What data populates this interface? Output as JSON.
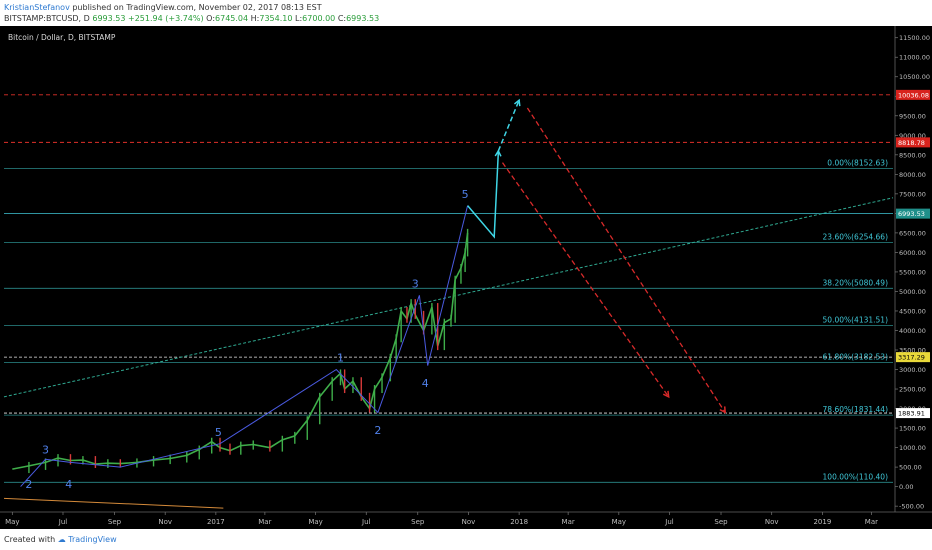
{
  "header": {
    "author": "KristianStefanov",
    "published": " published on TradingView.com, November 02, 2017 08:13 EST",
    "symbol": "BITSTAMP:BTCUSD, D",
    "last": "6993.53",
    "change": "+251.94 (+3.74%)",
    "o_label": "O:",
    "o_value": "6745.04",
    "h_label": "H:",
    "h_value": "7354.10",
    "l_label": "L:",
    "l_value": "6700.00",
    "c_label": "C:",
    "c_value": "6993.53"
  },
  "footer": {
    "created_with": "Created with",
    "brand": "TradingView"
  },
  "chart_data": {
    "type": "line",
    "title": "Bitcoin / Dollar, D, BITSTAMP",
    "y_ticks": [
      -500,
      0,
      500,
      1000,
      1500,
      2000,
      2500,
      3000,
      3500,
      4000,
      4500,
      5000,
      5500,
      6000,
      6500,
      7000,
      7500,
      8000,
      8500,
      9000,
      9500,
      10000,
      10500,
      11000,
      11500
    ],
    "y_tick_labels": [
      "-500.00",
      "0.00",
      "500.00",
      "1000.00",
      "1500.00",
      "2000.00",
      "2500.00",
      "3000.00",
      "3500.00",
      "4000.00",
      "4500.00",
      "5000.00",
      "5500.00",
      "6000.00",
      "6500.00",
      "7000.00",
      "7500.00",
      "8000.00",
      "8500.00",
      "9000.00",
      "9500.00",
      "10000.00",
      "10500.00",
      "11000.00",
      "11500.00"
    ],
    "ylim": [
      -650,
      11800
    ],
    "x_ticks": [
      {
        "label": "May",
        "t": 0
      },
      {
        "label": "Jul",
        "t": 61
      },
      {
        "label": "Sep",
        "t": 123
      },
      {
        "label": "Nov",
        "t": 184
      },
      {
        "label": "2017",
        "t": 245
      },
      {
        "label": "Mar",
        "t": 304
      },
      {
        "label": "May",
        "t": 365
      },
      {
        "label": "Jul",
        "t": 426
      },
      {
        "label": "Sep",
        "t": 488
      },
      {
        "label": "Nov",
        "t": 549
      },
      {
        "label": "2018",
        "t": 610
      },
      {
        "label": "Mar",
        "t": 669
      },
      {
        "label": "May",
        "t": 730
      },
      {
        "label": "Jul",
        "t": 791
      },
      {
        "label": "Sep",
        "t": 853
      },
      {
        "label": "Nov",
        "t": 914
      },
      {
        "label": "2019",
        "t": 975
      },
      {
        "label": "Mar",
        "t": 1034
      }
    ],
    "xlim": [
      -10,
      1060
    ],
    "price_series": {
      "t": [
        0,
        20,
        40,
        55,
        70,
        85,
        100,
        115,
        130,
        150,
        170,
        190,
        210,
        225,
        240,
        250,
        262,
        275,
        290,
        310,
        325,
        340,
        355,
        370,
        385,
        395,
        400,
        410,
        420,
        430,
        436,
        445,
        455,
        462,
        468,
        475,
        480,
        485,
        495,
        505,
        512,
        520,
        528,
        533,
        540,
        545,
        548
      ],
      "y": [
        450,
        530,
        620,
        730,
        670,
        680,
        580,
        600,
        590,
        620,
        680,
        720,
        800,
        950,
        1150,
        1000,
        920,
        1050,
        1080,
        1000,
        1200,
        1300,
        1700,
        2300,
        2700,
        2900,
        2500,
        2700,
        2300,
        2000,
        2500,
        2800,
        3300,
        3800,
        4500,
        4300,
        4700,
        4400,
        4000,
        4600,
        3600,
        4200,
        4300,
        5300,
        5600,
        6000,
        6500
      ]
    },
    "fib_levels": [
      {
        "label": "0.00%(8152.63)",
        "price": 8152.63
      },
      {
        "label": "23.60%(6254.66)",
        "price": 6254.66
      },
      {
        "label": "38.20%(5080.49)",
        "price": 5080.49
      },
      {
        "label": "50.00%(4131.51)",
        "price": 4131.51
      },
      {
        "label": "61.80%(3182.53)",
        "price": 3182.53
      },
      {
        "label": "78.60%(1831.44)",
        "price": 1831.44
      },
      {
        "label": "100.00%(110.40)",
        "price": 110.4
      }
    ],
    "red_levels": [
      10036.08,
      8818.78
    ],
    "white_levels": [
      3317.29,
      1883.91
    ],
    "current_price": 6993.53,
    "price_labels": [
      {
        "text": "10036.08",
        "price": 10036.08,
        "style": "red"
      },
      {
        "text": "8818.78",
        "price": 8818.78,
        "style": "red"
      },
      {
        "text": "6993.53",
        "price": 6993.53,
        "style": "teal"
      },
      {
        "text": "3317.29",
        "price": 3317.29,
        "style": "yellow"
      },
      {
        "text": "1883.91",
        "price": 1883.91,
        "style": "white"
      }
    ],
    "trendline": {
      "t0": -10,
      "p0": 2300,
      "t1": 1060,
      "p1": 7400
    },
    "orange_line": {
      "t0": -10,
      "p0": -300,
      "t1": 254,
      "p1": -550
    },
    "wave_lines": [
      {
        "points": [
          [
            10,
            0
          ],
          [
            40,
            700
          ],
          [
            70,
            620
          ],
          [
            130,
            500
          ],
          [
            250,
            1100
          ],
          [
            390,
            3000
          ],
          [
            440,
            1900
          ],
          [
            490,
            4900
          ],
          [
            500,
            3100
          ],
          [
            548,
            7200
          ]
        ]
      }
    ],
    "wave_labels": [
      {
        "text": "2",
        "t": 20,
        "y": -40
      },
      {
        "text": "3",
        "t": 40,
        "y": 850
      },
      {
        "text": "4",
        "t": 68,
        "y": -40
      },
      {
        "text": "5",
        "t": 248,
        "y": 1300
      },
      {
        "text": "1",
        "t": 395,
        "y": 3200
      },
      {
        "text": "2",
        "t": 440,
        "y": 1350
      },
      {
        "text": "3",
        "t": 485,
        "y": 5100
      },
      {
        "text": "4",
        "t": 497,
        "y": 2550
      },
      {
        "text": "5",
        "t": 545,
        "y": 7400
      }
    ],
    "projection_solid": [
      [
        548,
        7200
      ],
      [
        580,
        6400
      ],
      [
        585,
        8600
      ]
    ],
    "projection_dashed_cyan": [
      [
        585,
        8600
      ],
      [
        610,
        9900
      ]
    ],
    "projection_dashed_red": [
      {
        "points": [
          [
            590,
            8300
          ],
          [
            790,
            2300
          ]
        ]
      },
      {
        "points": [
          [
            620,
            9700
          ],
          [
            858,
            1900
          ]
        ]
      }
    ]
  }
}
